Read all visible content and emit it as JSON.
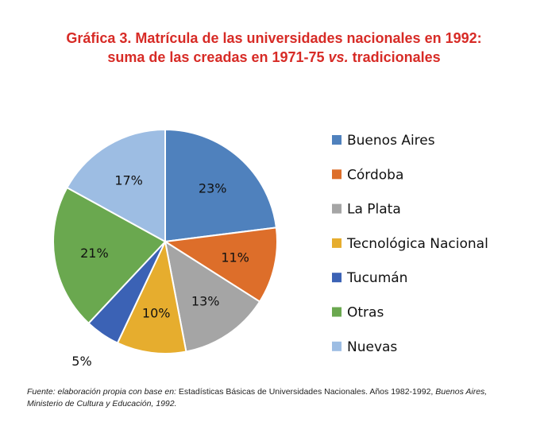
{
  "title": {
    "line1": "Gráfica 3. Matrícula de las universidades nacionales en 1992:",
    "line2_pre": "suma de las creadas en 1971-75 ",
    "line2_em": "vs.",
    "line2_post": " tradicionales"
  },
  "chart_data": {
    "type": "pie",
    "title": "Gráfica 3. Matrícula de las universidades nacionales en 1992: suma de las creadas en 1971-75 vs. tradicionales",
    "legend_position": "right",
    "slices": [
      {
        "label": "Buenos Aires",
        "value": 23,
        "display": "23%",
        "color": "#4f81bd"
      },
      {
        "label": "Córdoba",
        "value": 11,
        "display": "11%",
        "color": "#dd6e2a"
      },
      {
        "label": "La Plata",
        "value": 13,
        "display": "13%",
        "color": "#a5a5a5"
      },
      {
        "label": "Tecnológica Nacional",
        "value": 10,
        "display": "10%",
        "color": "#e6ad2e"
      },
      {
        "label": "Tucumán",
        "value": 5,
        "display": "5%",
        "color": "#3b62b5"
      },
      {
        "label": "Otras",
        "value": 21,
        "display": "21%",
        "color": "#6aa84f"
      },
      {
        "label": "Nuevas",
        "value": 17,
        "display": "17%",
        "color": "#9dbde3"
      }
    ]
  },
  "source": {
    "lead": "Fuente: elaboración propia con base en:",
    "body": " Estadísticas Básicas de Universidades Nacionales. Años 1982-1992, ",
    "tail": "Buenos Aires, Ministerio de Cultura y Educación, 1992."
  }
}
